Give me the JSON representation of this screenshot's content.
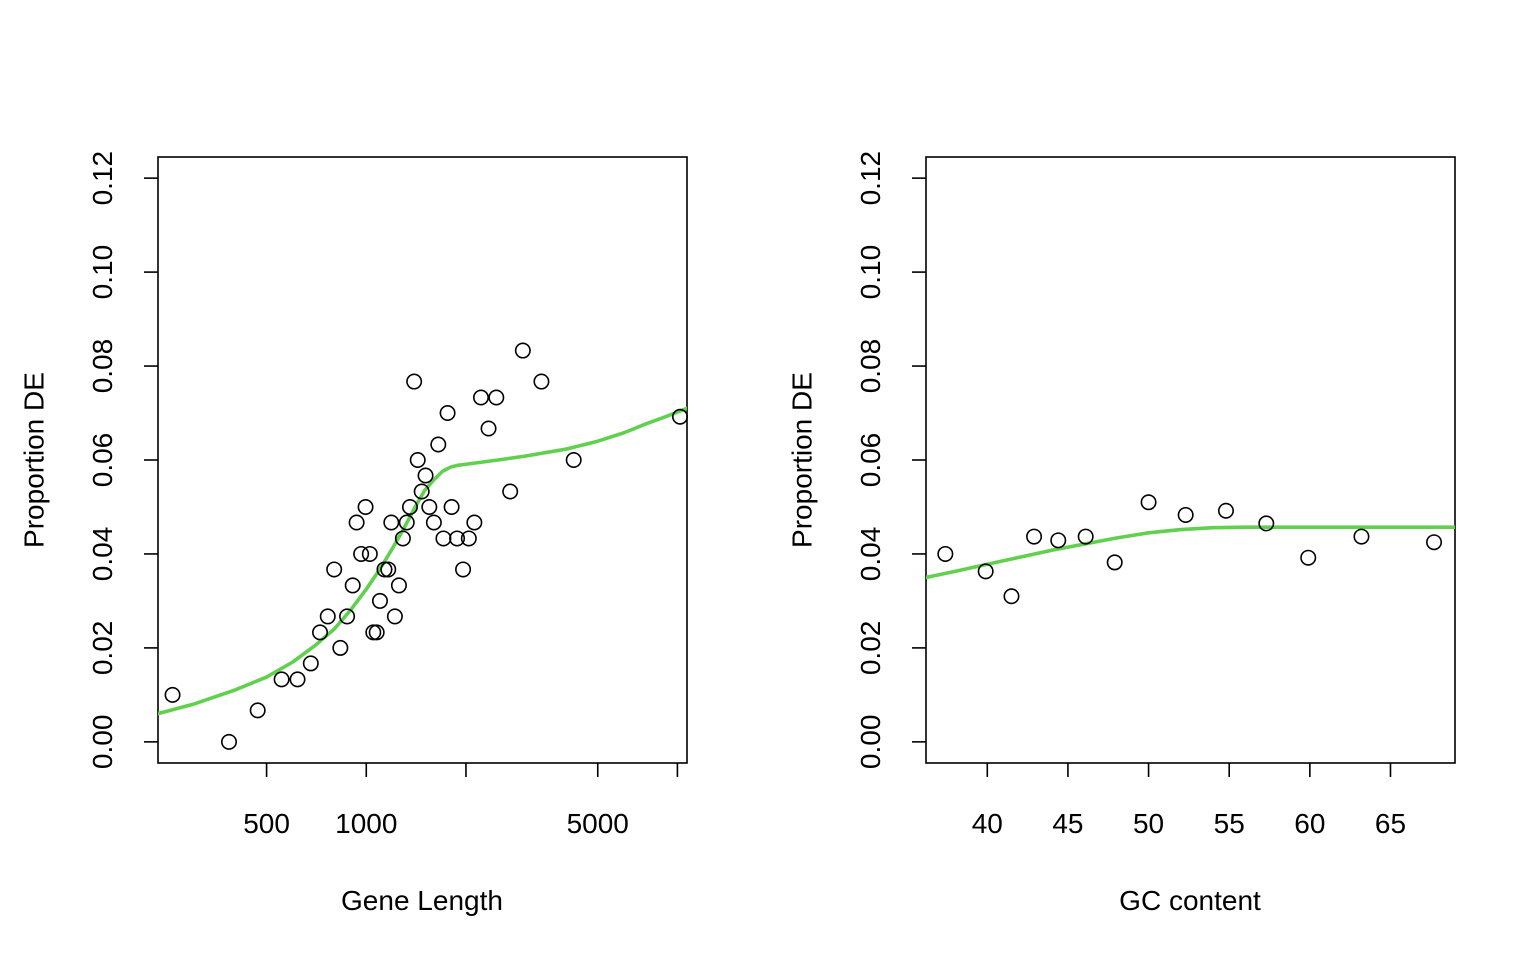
{
  "chart_data": [
    {
      "type": "scatter",
      "xlabel": "Gene Length",
      "ylabel": "Proportion DE",
      "x_scale": "log",
      "xlim": [
        235,
        9300
      ],
      "ylim": [
        -0.0045,
        0.1245
      ],
      "x_ticks": [
        {
          "value": 500,
          "label": "500"
        },
        {
          "value": 1000,
          "label": "1000"
        },
        {
          "value": 2000,
          "label": ""
        },
        {
          "value": 5000,
          "label": "5000"
        },
        {
          "value": 8700,
          "label": ""
        }
      ],
      "y_ticks": [
        {
          "value": 0.0,
          "label": "0.00"
        },
        {
          "value": 0.02,
          "label": "0.02"
        },
        {
          "value": 0.04,
          "label": "0.04"
        },
        {
          "value": 0.06,
          "label": "0.06"
        },
        {
          "value": 0.08,
          "label": "0.08"
        },
        {
          "value": 0.1,
          "label": "0.10"
        },
        {
          "value": 0.12,
          "label": "0.12"
        }
      ],
      "points": [
        {
          "x": 260,
          "y": 0.01
        },
        {
          "x": 385,
          "y": 0.0
        },
        {
          "x": 470,
          "y": 0.0067
        },
        {
          "x": 555,
          "y": 0.0133
        },
        {
          "x": 620,
          "y": 0.0133
        },
        {
          "x": 680,
          "y": 0.0167
        },
        {
          "x": 725,
          "y": 0.0233
        },
        {
          "x": 765,
          "y": 0.0267
        },
        {
          "x": 800,
          "y": 0.0367
        },
        {
          "x": 835,
          "y": 0.02
        },
        {
          "x": 875,
          "y": 0.0267
        },
        {
          "x": 910,
          "y": 0.0333
        },
        {
          "x": 935,
          "y": 0.0467
        },
        {
          "x": 965,
          "y": 0.04
        },
        {
          "x": 995,
          "y": 0.05
        },
        {
          "x": 1025,
          "y": 0.04
        },
        {
          "x": 1050,
          "y": 0.0233
        },
        {
          "x": 1075,
          "y": 0.0233
        },
        {
          "x": 1100,
          "y": 0.03
        },
        {
          "x": 1135,
          "y": 0.0367
        },
        {
          "x": 1165,
          "y": 0.0367
        },
        {
          "x": 1190,
          "y": 0.0467
        },
        {
          "x": 1220,
          "y": 0.0267
        },
        {
          "x": 1255,
          "y": 0.0333
        },
        {
          "x": 1290,
          "y": 0.0433
        },
        {
          "x": 1325,
          "y": 0.0467
        },
        {
          "x": 1355,
          "y": 0.05
        },
        {
          "x": 1395,
          "y": 0.0767
        },
        {
          "x": 1430,
          "y": 0.06
        },
        {
          "x": 1470,
          "y": 0.0533
        },
        {
          "x": 1510,
          "y": 0.0567
        },
        {
          "x": 1550,
          "y": 0.05
        },
        {
          "x": 1600,
          "y": 0.0467
        },
        {
          "x": 1650,
          "y": 0.0633
        },
        {
          "x": 1710,
          "y": 0.0433
        },
        {
          "x": 1760,
          "y": 0.07
        },
        {
          "x": 1810,
          "y": 0.05
        },
        {
          "x": 1880,
          "y": 0.0433
        },
        {
          "x": 1960,
          "y": 0.0367
        },
        {
          "x": 2040,
          "y": 0.0433
        },
        {
          "x": 2120,
          "y": 0.0467
        },
        {
          "x": 2220,
          "y": 0.0733
        },
        {
          "x": 2340,
          "y": 0.0667
        },
        {
          "x": 2470,
          "y": 0.0733
        },
        {
          "x": 2720,
          "y": 0.0533
        },
        {
          "x": 2970,
          "y": 0.0833
        },
        {
          "x": 3380,
          "y": 0.0767
        },
        {
          "x": 4230,
          "y": 0.06
        },
        {
          "x": 8860,
          "y": 0.0692
        }
      ],
      "curve": {
        "x": [
          235,
          300,
          400,
          500,
          600,
          700,
          800,
          900,
          1000,
          1100,
          1200,
          1300,
          1400,
          1500,
          1600,
          1700,
          1800,
          1900,
          2000,
          2500,
          3000,
          4000,
          5000,
          6000,
          7000,
          8000,
          9300
        ],
        "y": [
          0.006,
          0.008,
          0.011,
          0.0138,
          0.017,
          0.0205,
          0.024,
          0.0282,
          0.0325,
          0.0368,
          0.0412,
          0.0455,
          0.0498,
          0.0535,
          0.0558,
          0.0576,
          0.0585,
          0.0589,
          0.0591,
          0.06,
          0.0608,
          0.0623,
          0.064,
          0.0658,
          0.0677,
          0.0692,
          0.071
        ]
      },
      "point_color": "#000000",
      "curve_color": "#61D04F",
      "grid": false,
      "legend": "none"
    },
    {
      "type": "scatter",
      "xlabel": "GC content",
      "ylabel": "Proportion DE",
      "x_scale": "linear",
      "xlim": [
        36.2,
        69.0
      ],
      "ylim": [
        -0.0045,
        0.1245
      ],
      "x_ticks": [
        {
          "value": 40,
          "label": "40"
        },
        {
          "value": 45,
          "label": "45"
        },
        {
          "value": 50,
          "label": "50"
        },
        {
          "value": 55,
          "label": "55"
        },
        {
          "value": 60,
          "label": "60"
        },
        {
          "value": 65,
          "label": "65"
        }
      ],
      "y_ticks": [
        {
          "value": 0.0,
          "label": "0.00"
        },
        {
          "value": 0.02,
          "label": "0.02"
        },
        {
          "value": 0.04,
          "label": "0.04"
        },
        {
          "value": 0.06,
          "label": "0.06"
        },
        {
          "value": 0.08,
          "label": "0.08"
        },
        {
          "value": 0.1,
          "label": "0.10"
        },
        {
          "value": 0.12,
          "label": "0.12"
        }
      ],
      "points": [
        {
          "x": 37.4,
          "y": 0.04
        },
        {
          "x": 39.9,
          "y": 0.0363
        },
        {
          "x": 41.5,
          "y": 0.031
        },
        {
          "x": 42.9,
          "y": 0.0437
        },
        {
          "x": 44.4,
          "y": 0.0429
        },
        {
          "x": 46.1,
          "y": 0.0437
        },
        {
          "x": 47.9,
          "y": 0.0382
        },
        {
          "x": 50.0,
          "y": 0.051
        },
        {
          "x": 52.3,
          "y": 0.0483
        },
        {
          "x": 54.8,
          "y": 0.0492
        },
        {
          "x": 57.3,
          "y": 0.0465
        },
        {
          "x": 59.9,
          "y": 0.0392
        },
        {
          "x": 63.2,
          "y": 0.0437
        },
        {
          "x": 67.7,
          "y": 0.0425
        }
      ],
      "curve": {
        "x": [
          36.2,
          38,
          40,
          42,
          44,
          46,
          48,
          50,
          52,
          54,
          56,
          58,
          60,
          62,
          65,
          69.0
        ],
        "y": [
          0.035,
          0.0363,
          0.0378,
          0.0393,
          0.0408,
          0.0421,
          0.0434,
          0.0445,
          0.0452,
          0.0456,
          0.0457,
          0.0457,
          0.0457,
          0.0457,
          0.0457,
          0.0457
        ]
      },
      "point_color": "#000000",
      "curve_color": "#61D04F",
      "grid": false,
      "legend": "none"
    }
  ]
}
